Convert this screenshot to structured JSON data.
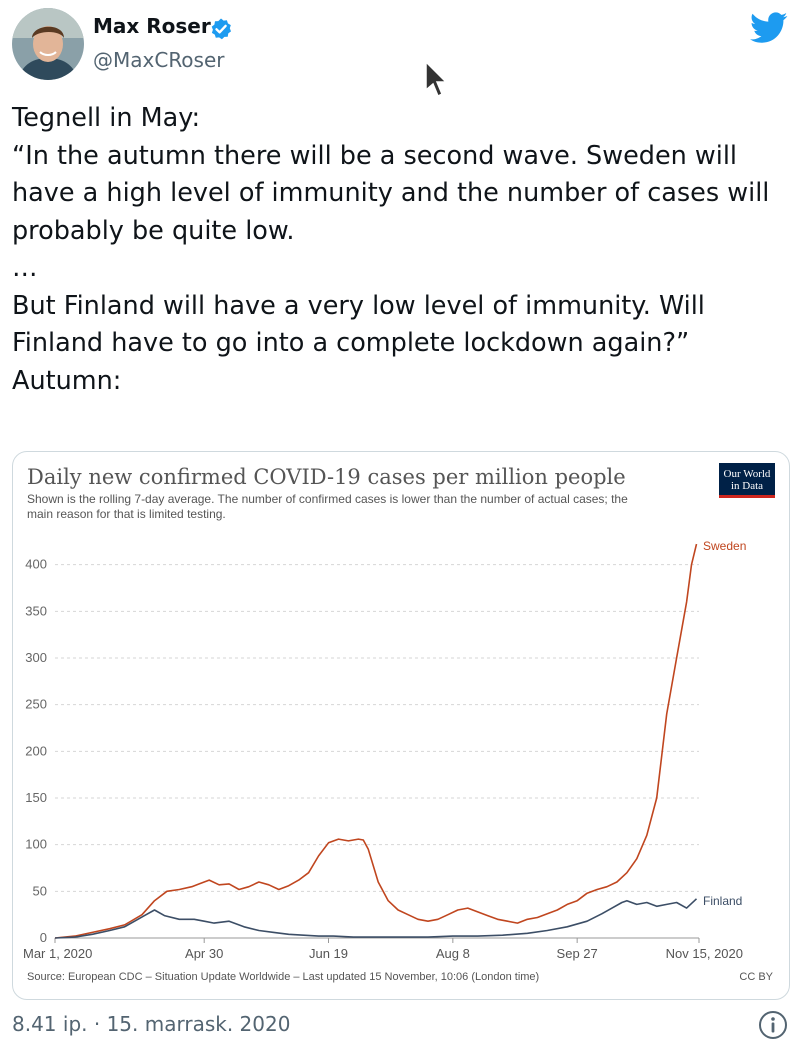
{
  "author": {
    "name": "Max Roser",
    "handle": "@MaxCRoser",
    "verified_icon": "verified-badge-icon",
    "avatar_icon": "avatar-photo"
  },
  "brand": {
    "logo": "twitter-bird-icon",
    "color": "#1d9bf0"
  },
  "tweet": {
    "lines": [
      "Tegnell in May:",
      "“In the autumn there will be a second wave. Sweden will",
      "have a high level of immunity and the number of cases will",
      "probably be quite low.",
      "…",
      "But Finland will have a very low level of immunity. Will",
      "Finland have to go into a complete lockdown again?”",
      "",
      "Autumn:"
    ]
  },
  "timestamp": "8.41 ip. · 15. marrask. 2020",
  "info_icon": "info-icon",
  "chart_data": {
    "type": "line",
    "title": "Daily new confirmed COVID-19 cases per million people",
    "subtitle_lines": [
      "Shown is the rolling 7-day average. The number of confirmed cases is lower than the number of actual cases; the",
      "main reason for that is limited testing."
    ],
    "logo_lines": [
      "Our World",
      "in Data"
    ],
    "logo_color": "#002147",
    "logo_accent": "#ce261e",
    "source": "Source: European CDC – Situation Update Worldwide – Last updated 15 November, 10:06 (London time)",
    "license": "CC BY",
    "ylim": [
      0,
      420
    ],
    "y_ticks": [
      0,
      50,
      100,
      150,
      200,
      250,
      300,
      350,
      400
    ],
    "x_range_days": [
      0,
      259
    ],
    "x_ticks": [
      {
        "day": 0,
        "label": "Mar 1, 2020"
      },
      {
        "day": 60,
        "label": "Apr 30"
      },
      {
        "day": 110,
        "label": "Jun 19"
      },
      {
        "day": 160,
        "label": "Aug 8"
      },
      {
        "day": 210,
        "label": "Sep 27"
      },
      {
        "day": 259,
        "label": "Nov 15, 2020"
      }
    ],
    "grid": true,
    "series": [
      {
        "name": "Sweden",
        "color": "#c0461f",
        "points": [
          [
            0,
            0
          ],
          [
            8,
            2
          ],
          [
            15,
            6
          ],
          [
            22,
            10
          ],
          [
            28,
            14
          ],
          [
            35,
            25
          ],
          [
            40,
            40
          ],
          [
            45,
            50
          ],
          [
            50,
            52
          ],
          [
            55,
            55
          ],
          [
            58,
            58
          ],
          [
            62,
            62
          ],
          [
            66,
            57
          ],
          [
            70,
            58
          ],
          [
            74,
            52
          ],
          [
            78,
            55
          ],
          [
            82,
            60
          ],
          [
            86,
            57
          ],
          [
            90,
            52
          ],
          [
            94,
            56
          ],
          [
            98,
            62
          ],
          [
            102,
            70
          ],
          [
            106,
            88
          ],
          [
            110,
            102
          ],
          [
            114,
            106
          ],
          [
            118,
            104
          ],
          [
            122,
            106
          ],
          [
            124,
            105
          ],
          [
            126,
            95
          ],
          [
            130,
            60
          ],
          [
            134,
            40
          ],
          [
            138,
            30
          ],
          [
            142,
            25
          ],
          [
            146,
            20
          ],
          [
            150,
            18
          ],
          [
            154,
            20
          ],
          [
            158,
            25
          ],
          [
            162,
            30
          ],
          [
            166,
            32
          ],
          [
            170,
            28
          ],
          [
            174,
            24
          ],
          [
            178,
            20
          ],
          [
            182,
            18
          ],
          [
            186,
            16
          ],
          [
            190,
            20
          ],
          [
            194,
            22
          ],
          [
            198,
            26
          ],
          [
            202,
            30
          ],
          [
            206,
            36
          ],
          [
            210,
            40
          ],
          [
            214,
            48
          ],
          [
            218,
            52
          ],
          [
            222,
            55
          ],
          [
            226,
            60
          ],
          [
            230,
            70
          ],
          [
            234,
            85
          ],
          [
            238,
            110
          ],
          [
            242,
            150
          ],
          [
            246,
            240
          ],
          [
            250,
            300
          ],
          [
            254,
            360
          ],
          [
            256,
            400
          ],
          [
            258,
            422
          ]
        ]
      },
      {
        "name": "Finland",
        "color": "#3c4e66",
        "points": [
          [
            0,
            0
          ],
          [
            8,
            1
          ],
          [
            15,
            4
          ],
          [
            22,
            8
          ],
          [
            28,
            12
          ],
          [
            32,
            18
          ],
          [
            36,
            24
          ],
          [
            40,
            30
          ],
          [
            44,
            24
          ],
          [
            50,
            20
          ],
          [
            56,
            20
          ],
          [
            60,
            18
          ],
          [
            64,
            16
          ],
          [
            70,
            18
          ],
          [
            76,
            12
          ],
          [
            82,
            8
          ],
          [
            88,
            6
          ],
          [
            94,
            4
          ],
          [
            100,
            3
          ],
          [
            106,
            2
          ],
          [
            112,
            2
          ],
          [
            120,
            1
          ],
          [
            130,
            1
          ],
          [
            140,
            1
          ],
          [
            150,
            1
          ],
          [
            160,
            2
          ],
          [
            170,
            2
          ],
          [
            180,
            3
          ],
          [
            190,
            5
          ],
          [
            198,
            8
          ],
          [
            206,
            12
          ],
          [
            214,
            18
          ],
          [
            220,
            26
          ],
          [
            224,
            32
          ],
          [
            228,
            38
          ],
          [
            230,
            40
          ],
          [
            234,
            36
          ],
          [
            238,
            38
          ],
          [
            242,
            34
          ],
          [
            246,
            36
          ],
          [
            250,
            38
          ],
          [
            254,
            32
          ],
          [
            258,
            42
          ]
        ]
      }
    ]
  }
}
